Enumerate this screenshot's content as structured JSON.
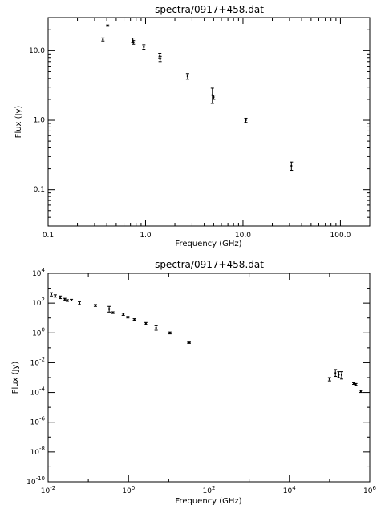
{
  "colors": {
    "background": "#ffffff",
    "foreground": "#000000"
  },
  "chart_data": [
    {
      "type": "scatter",
      "title": "spectra/0917+458.dat",
      "xlabel": "Frequency (GHz)",
      "ylabel": "Flux (Jy)",
      "xscale": "log",
      "yscale": "log",
      "xlim": [
        0.1,
        200
      ],
      "ylim": [
        0.03,
        30
      ],
      "grid": false,
      "x_tick_values": [
        0.1,
        1,
        10,
        100
      ],
      "x_tick_labels": [
        "0.1",
        "1.0",
        "10.0",
        "100.0"
      ],
      "y_tick_values": [
        0.1,
        1,
        10
      ],
      "y_tick_labels": [
        "0.1",
        "1.0",
        "10.0"
      ],
      "points": [
        {
          "x": 0.365,
          "y": 14.5,
          "ylo": 13.8,
          "yhi": 15.3
        },
        {
          "x": 0.408,
          "y": 23.0,
          "ylo": 22.5,
          "yhi": 23.5
        },
        {
          "x": 0.74,
          "y": 14.0,
          "ylo": 13.0,
          "yhi": 15.2
        },
        {
          "x": 0.75,
          "y": 13.2,
          "ylo": 12.4,
          "yhi": 14.0
        },
        {
          "x": 0.96,
          "y": 11.3,
          "ylo": 10.5,
          "yhi": 12.2
        },
        {
          "x": 1.4,
          "y": 8.5,
          "ylo": 7.9,
          "yhi": 9.2
        },
        {
          "x": 1.41,
          "y": 7.6,
          "ylo": 7.0,
          "yhi": 8.3
        },
        {
          "x": 2.7,
          "y": 4.3,
          "ylo": 3.9,
          "yhi": 4.7
        },
        {
          "x": 4.85,
          "y": 2.3,
          "ylo": 1.75,
          "yhi": 2.9
        },
        {
          "x": 5.0,
          "y": 2.15,
          "ylo": 2.0,
          "yhi": 2.3
        },
        {
          "x": 10.7,
          "y": 1.0,
          "ylo": 0.93,
          "yhi": 1.07
        },
        {
          "x": 31.4,
          "y": 0.22,
          "ylo": 0.19,
          "yhi": 0.25
        }
      ]
    },
    {
      "type": "scatter",
      "title": "spectra/0917+458.dat",
      "xlabel": "Frequency (GHz)",
      "ylabel": "Flux (Jy)",
      "xscale": "log",
      "yscale": "log",
      "xlim": [
        0.01,
        1000000
      ],
      "ylim": [
        1e-10,
        10000
      ],
      "grid": false,
      "x_tick_values": [
        0.01,
        1,
        100,
        10000,
        1000000
      ],
      "x_tick_labels": [
        {
          "base": "10",
          "exp": "-2"
        },
        {
          "base": "10",
          "exp": "0"
        },
        {
          "base": "10",
          "exp": "2"
        },
        {
          "base": "10",
          "exp": "4"
        },
        {
          "base": "10",
          "exp": "6"
        }
      ],
      "y_tick_values": [
        1e-10,
        1e-08,
        1e-06,
        0.0001,
        0.01,
        1,
        100,
        10000
      ],
      "y_tick_labels": [
        {
          "base": "10",
          "exp": "-10"
        },
        {
          "base": "10",
          "exp": "-8"
        },
        {
          "base": "10",
          "exp": "-6"
        },
        {
          "base": "10",
          "exp": "-4"
        },
        {
          "base": "10",
          "exp": "-2"
        },
        {
          "base": "10",
          "exp": "0"
        },
        {
          "base": "10",
          "exp": "2"
        },
        {
          "base": "10",
          "exp": "4"
        }
      ],
      "points": [
        {
          "x": 0.012,
          "y": 400,
          "ylo": 300,
          "yhi": 500
        },
        {
          "x": 0.015,
          "y": 300,
          "ylo": 250,
          "yhi": 360
        },
        {
          "x": 0.02,
          "y": 250,
          "ylo": 200,
          "yhi": 300
        },
        {
          "x": 0.026,
          "y": 180,
          "ylo": 150,
          "yhi": 210
        },
        {
          "x": 0.03,
          "y": 150,
          "ylo": 130,
          "yhi": 170
        },
        {
          "x": 0.038,
          "y": 160,
          "ylo": 140,
          "yhi": 180
        },
        {
          "x": 0.06,
          "y": 100,
          "ylo": 80,
          "yhi": 125
        },
        {
          "x": 0.15,
          "y": 70,
          "ylo": 60,
          "yhi": 80
        },
        {
          "x": 0.33,
          "y": 40,
          "ylo": 25,
          "yhi": 60
        },
        {
          "x": 0.74,
          "y": 18,
          "ylo": 15,
          "yhi": 21
        },
        {
          "x": 0.408,
          "y": 23,
          "ylo": 20,
          "yhi": 26
        },
        {
          "x": 0.96,
          "y": 11.3,
          "ylo": 10,
          "yhi": 12.7
        },
        {
          "x": 1.4,
          "y": 8,
          "ylo": 7,
          "yhi": 9
        },
        {
          "x": 2.7,
          "y": 4.3,
          "ylo": 3.6,
          "yhi": 5
        },
        {
          "x": 4.85,
          "y": 2.2,
          "ylo": 1.5,
          "yhi": 3
        },
        {
          "x": 10.7,
          "y": 1.0,
          "ylo": 0.85,
          "yhi": 1.15
        },
        {
          "x": 31.4,
          "y": 0.22,
          "ylo": 0.2,
          "yhi": 0.24
        },
        {
          "x": 32.4,
          "y": 0.22,
          "ylo": 0.2,
          "yhi": 0.24
        },
        {
          "x": 100000,
          "y": 0.0008,
          "ylo": 0.0006,
          "yhi": 0.001
        },
        {
          "x": 140000,
          "y": 0.002,
          "ylo": 0.0012,
          "yhi": 0.0035
        },
        {
          "x": 170000,
          "y": 0.0016,
          "ylo": 0.001,
          "yhi": 0.0025
        },
        {
          "x": 200000,
          "y": 0.0015,
          "ylo": 0.0008,
          "yhi": 0.0025
        },
        {
          "x": 400000,
          "y": 0.0004,
          "ylo": 0.00035,
          "yhi": 0.00045
        },
        {
          "x": 450000,
          "y": 0.00035,
          "ylo": 0.0003,
          "yhi": 0.0004
        },
        {
          "x": 600000,
          "y": 0.00012,
          "ylo": 0.0001,
          "yhi": 0.00014
        }
      ]
    }
  ]
}
